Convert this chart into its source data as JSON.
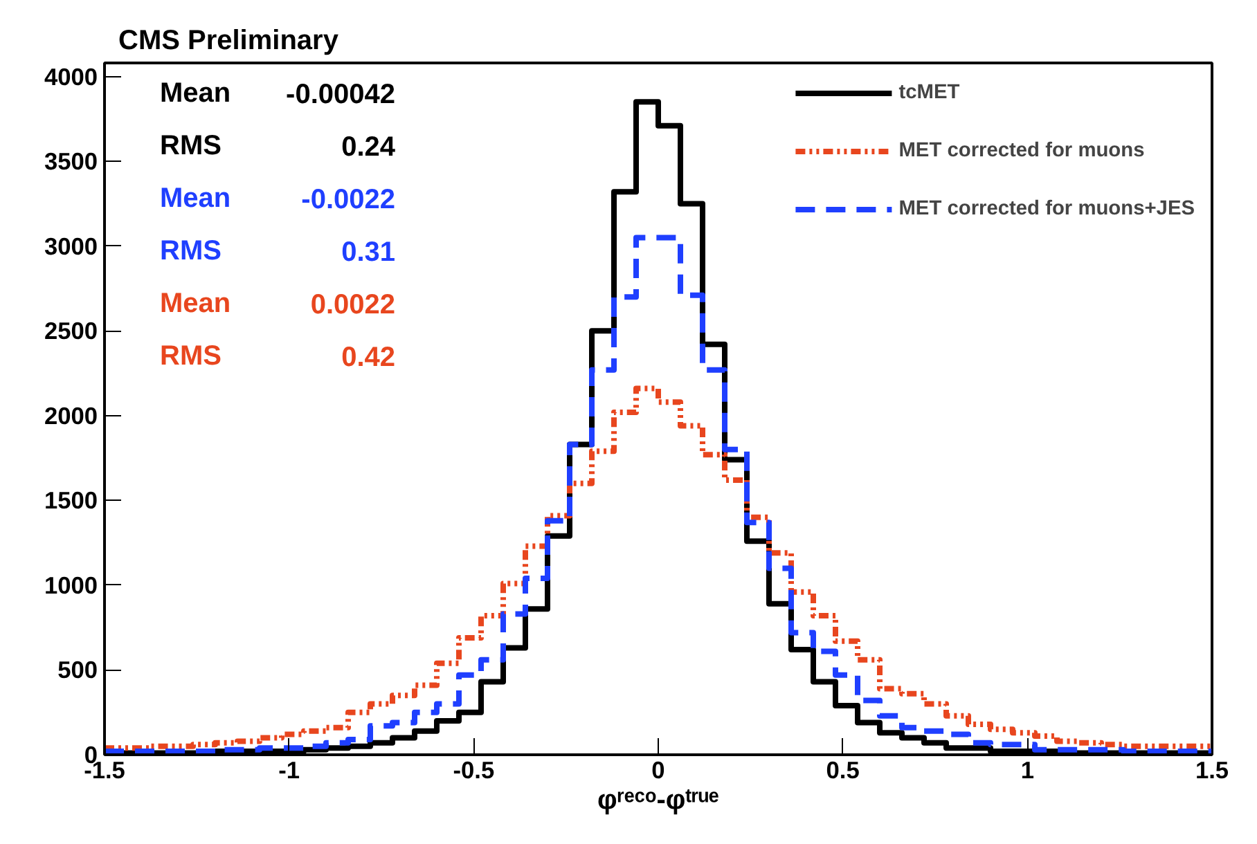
{
  "chart_data": {
    "type": "histogram",
    "title": "CMS Preliminary",
    "xlabel": "φʳᵉᶜᵒ-φᵗʳᵘᵉ",
    "bins": [
      -1.5,
      -1.44,
      -1.38,
      -1.32,
      -1.26,
      -1.2,
      -1.14,
      -1.08,
      -1.02,
      -0.96,
      -0.9,
      -0.84,
      -0.78,
      -0.72,
      -0.66,
      -0.6,
      -0.54,
      -0.48,
      -0.42,
      -0.36,
      -0.3,
      -0.24,
      -0.18,
      -0.12,
      -0.06,
      0,
      0.06,
      0.12,
      0.18,
      0.24,
      0.3,
      0.36,
      0.42,
      0.48,
      0.54,
      0.6,
      0.66,
      0.72,
      0.78,
      0.84,
      0.9,
      0.96,
      1.02,
      1.08,
      1.14,
      1.2,
      1.26,
      1.32,
      1.38,
      1.44,
      1.5
    ],
    "series": [
      {
        "name": "tcMET",
        "color": "#000000",
        "line_style": "solid",
        "values": [
          10,
          10,
          10,
          10,
          10,
          20,
          20,
          20,
          20,
          30,
          40,
          50,
          70,
          100,
          140,
          200,
          250,
          430,
          630,
          860,
          1290,
          1830,
          2500,
          3320,
          3850,
          3710,
          3250,
          2420,
          1740,
          1260,
          890,
          620,
          430,
          290,
          190,
          130,
          100,
          70,
          40,
          40,
          20,
          20,
          20,
          10,
          10,
          10,
          10,
          10,
          10,
          10
        ]
      },
      {
        "name": "MET corrected for muons",
        "color": "#e8461e",
        "line_style": "dotted",
        "values": [
          40,
          40,
          50,
          50,
          60,
          70,
          80,
          100,
          120,
          140,
          160,
          250,
          300,
          350,
          410,
          540,
          690,
          820,
          1010,
          1230,
          1410,
          1600,
          1790,
          2020,
          2160,
          2080,
          1940,
          1770,
          1620,
          1400,
          1190,
          960,
          820,
          670,
          560,
          390,
          360,
          300,
          230,
          180,
          150,
          130,
          110,
          80,
          70,
          60,
          50,
          50,
          50,
          50
        ]
      },
      {
        "name": "MET corrected for muons+JES",
        "color": "#1f3fff",
        "line_style": "dashed",
        "values": [
          20,
          20,
          20,
          20,
          20,
          30,
          30,
          40,
          40,
          50,
          70,
          90,
          170,
          190,
          250,
          300,
          470,
          560,
          830,
          1040,
          1380,
          1830,
          2270,
          2700,
          3050,
          3050,
          2710,
          2270,
          1800,
          1370,
          1100,
          720,
          610,
          470,
          320,
          230,
          160,
          140,
          120,
          70,
          60,
          60,
          30,
          30,
          30,
          30,
          20,
          20,
          20,
          20
        ]
      }
    ],
    "annotations": [
      "Mean -0.00042",
      "RMS 0.24",
      "Mean -0.0022",
      "RMS 0.31",
      "Mean 0.0022",
      "RMS 0.42"
    ],
    "xlim": [
      -1.5,
      1.5
    ],
    "ylim": [
      0,
      4080
    ],
    "xticks": [
      -1.5,
      -1,
      -0.5,
      0,
      0.5,
      1,
      1.5
    ],
    "yticks": [
      0,
      500,
      1000,
      1500,
      2000,
      2500,
      3000,
      3500,
      4000
    ],
    "grid": false,
    "legend": "top right"
  }
}
